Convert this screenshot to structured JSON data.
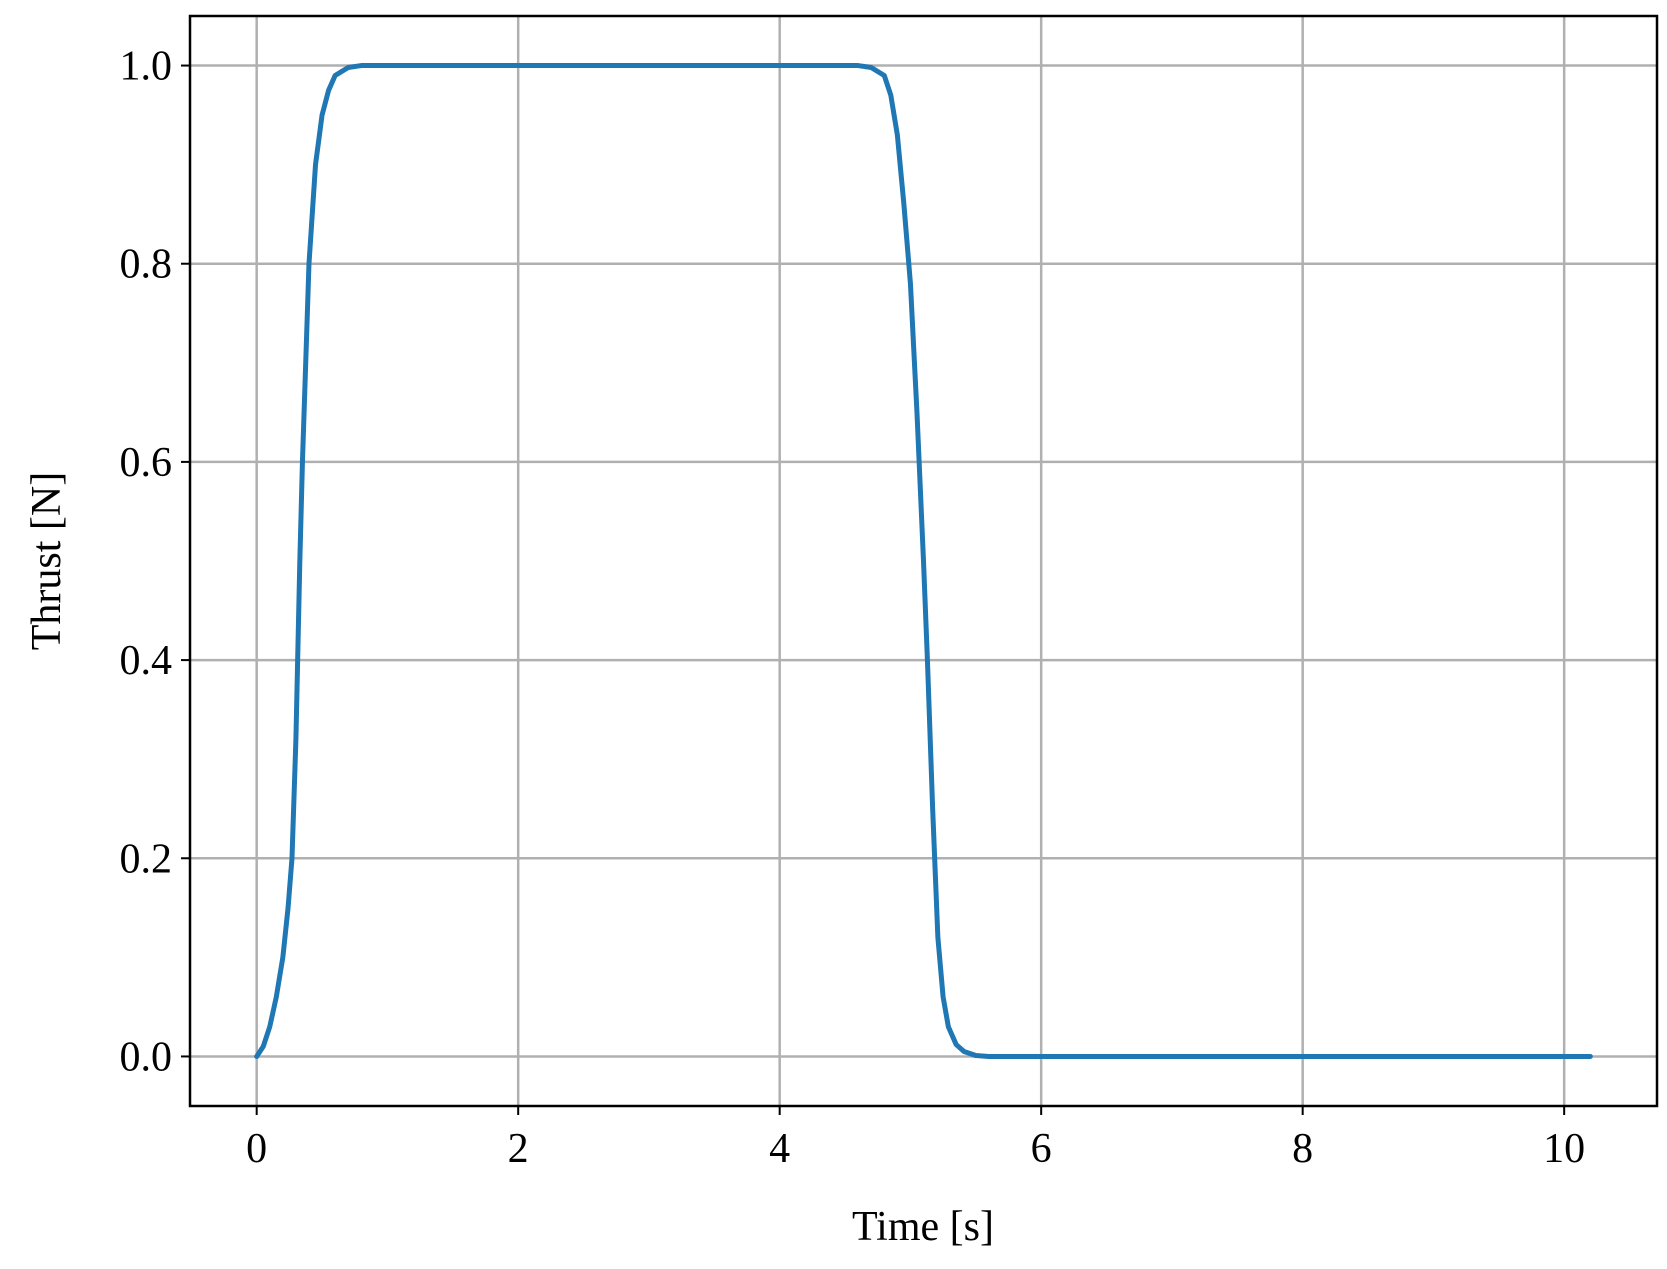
{
  "chart_data": {
    "type": "line",
    "xlabel": "Time [s]",
    "ylabel": "Thrust [N]",
    "x": [
      0,
      0.05,
      0.1,
      0.15,
      0.2,
      0.24,
      0.27,
      0.3,
      0.33,
      0.35,
      0.38,
      0.4,
      0.45,
      0.5,
      0.55,
      0.6,
      0.7,
      0.8,
      4.6,
      4.7,
      4.8,
      4.85,
      4.9,
      4.95,
      5.0,
      5.05,
      5.1,
      5.13,
      5.17,
      5.21,
      5.25,
      5.29,
      5.35,
      5.41,
      5.5,
      5.6,
      10.2
    ],
    "series": [
      {
        "color": "#1f77b4",
        "values": [
          0,
          0.01,
          0.03,
          0.06,
          0.1,
          0.15,
          0.2,
          0.32,
          0.5,
          0.6,
          0.72,
          0.8,
          0.9,
          0.95,
          0.975,
          0.99,
          0.998,
          1.0,
          1.0,
          0.998,
          0.99,
          0.97,
          0.93,
          0.86,
          0.78,
          0.65,
          0.5,
          0.4,
          0.25,
          0.12,
          0.06,
          0.03,
          0.012,
          0.005,
          0.001,
          0,
          0
        ]
      }
    ],
    "xlim": [
      -0.51,
      10.71
    ],
    "ylim": [
      -0.05,
      1.05
    ],
    "xticks": [
      0,
      2,
      4,
      6,
      8,
      10
    ],
    "yticks": [
      {
        "value": 0,
        "label": "0.0"
      },
      0.2,
      0.4,
      0.6,
      0.8,
      {
        "value": 1,
        "label": "1.0"
      }
    ],
    "grid": true
  }
}
